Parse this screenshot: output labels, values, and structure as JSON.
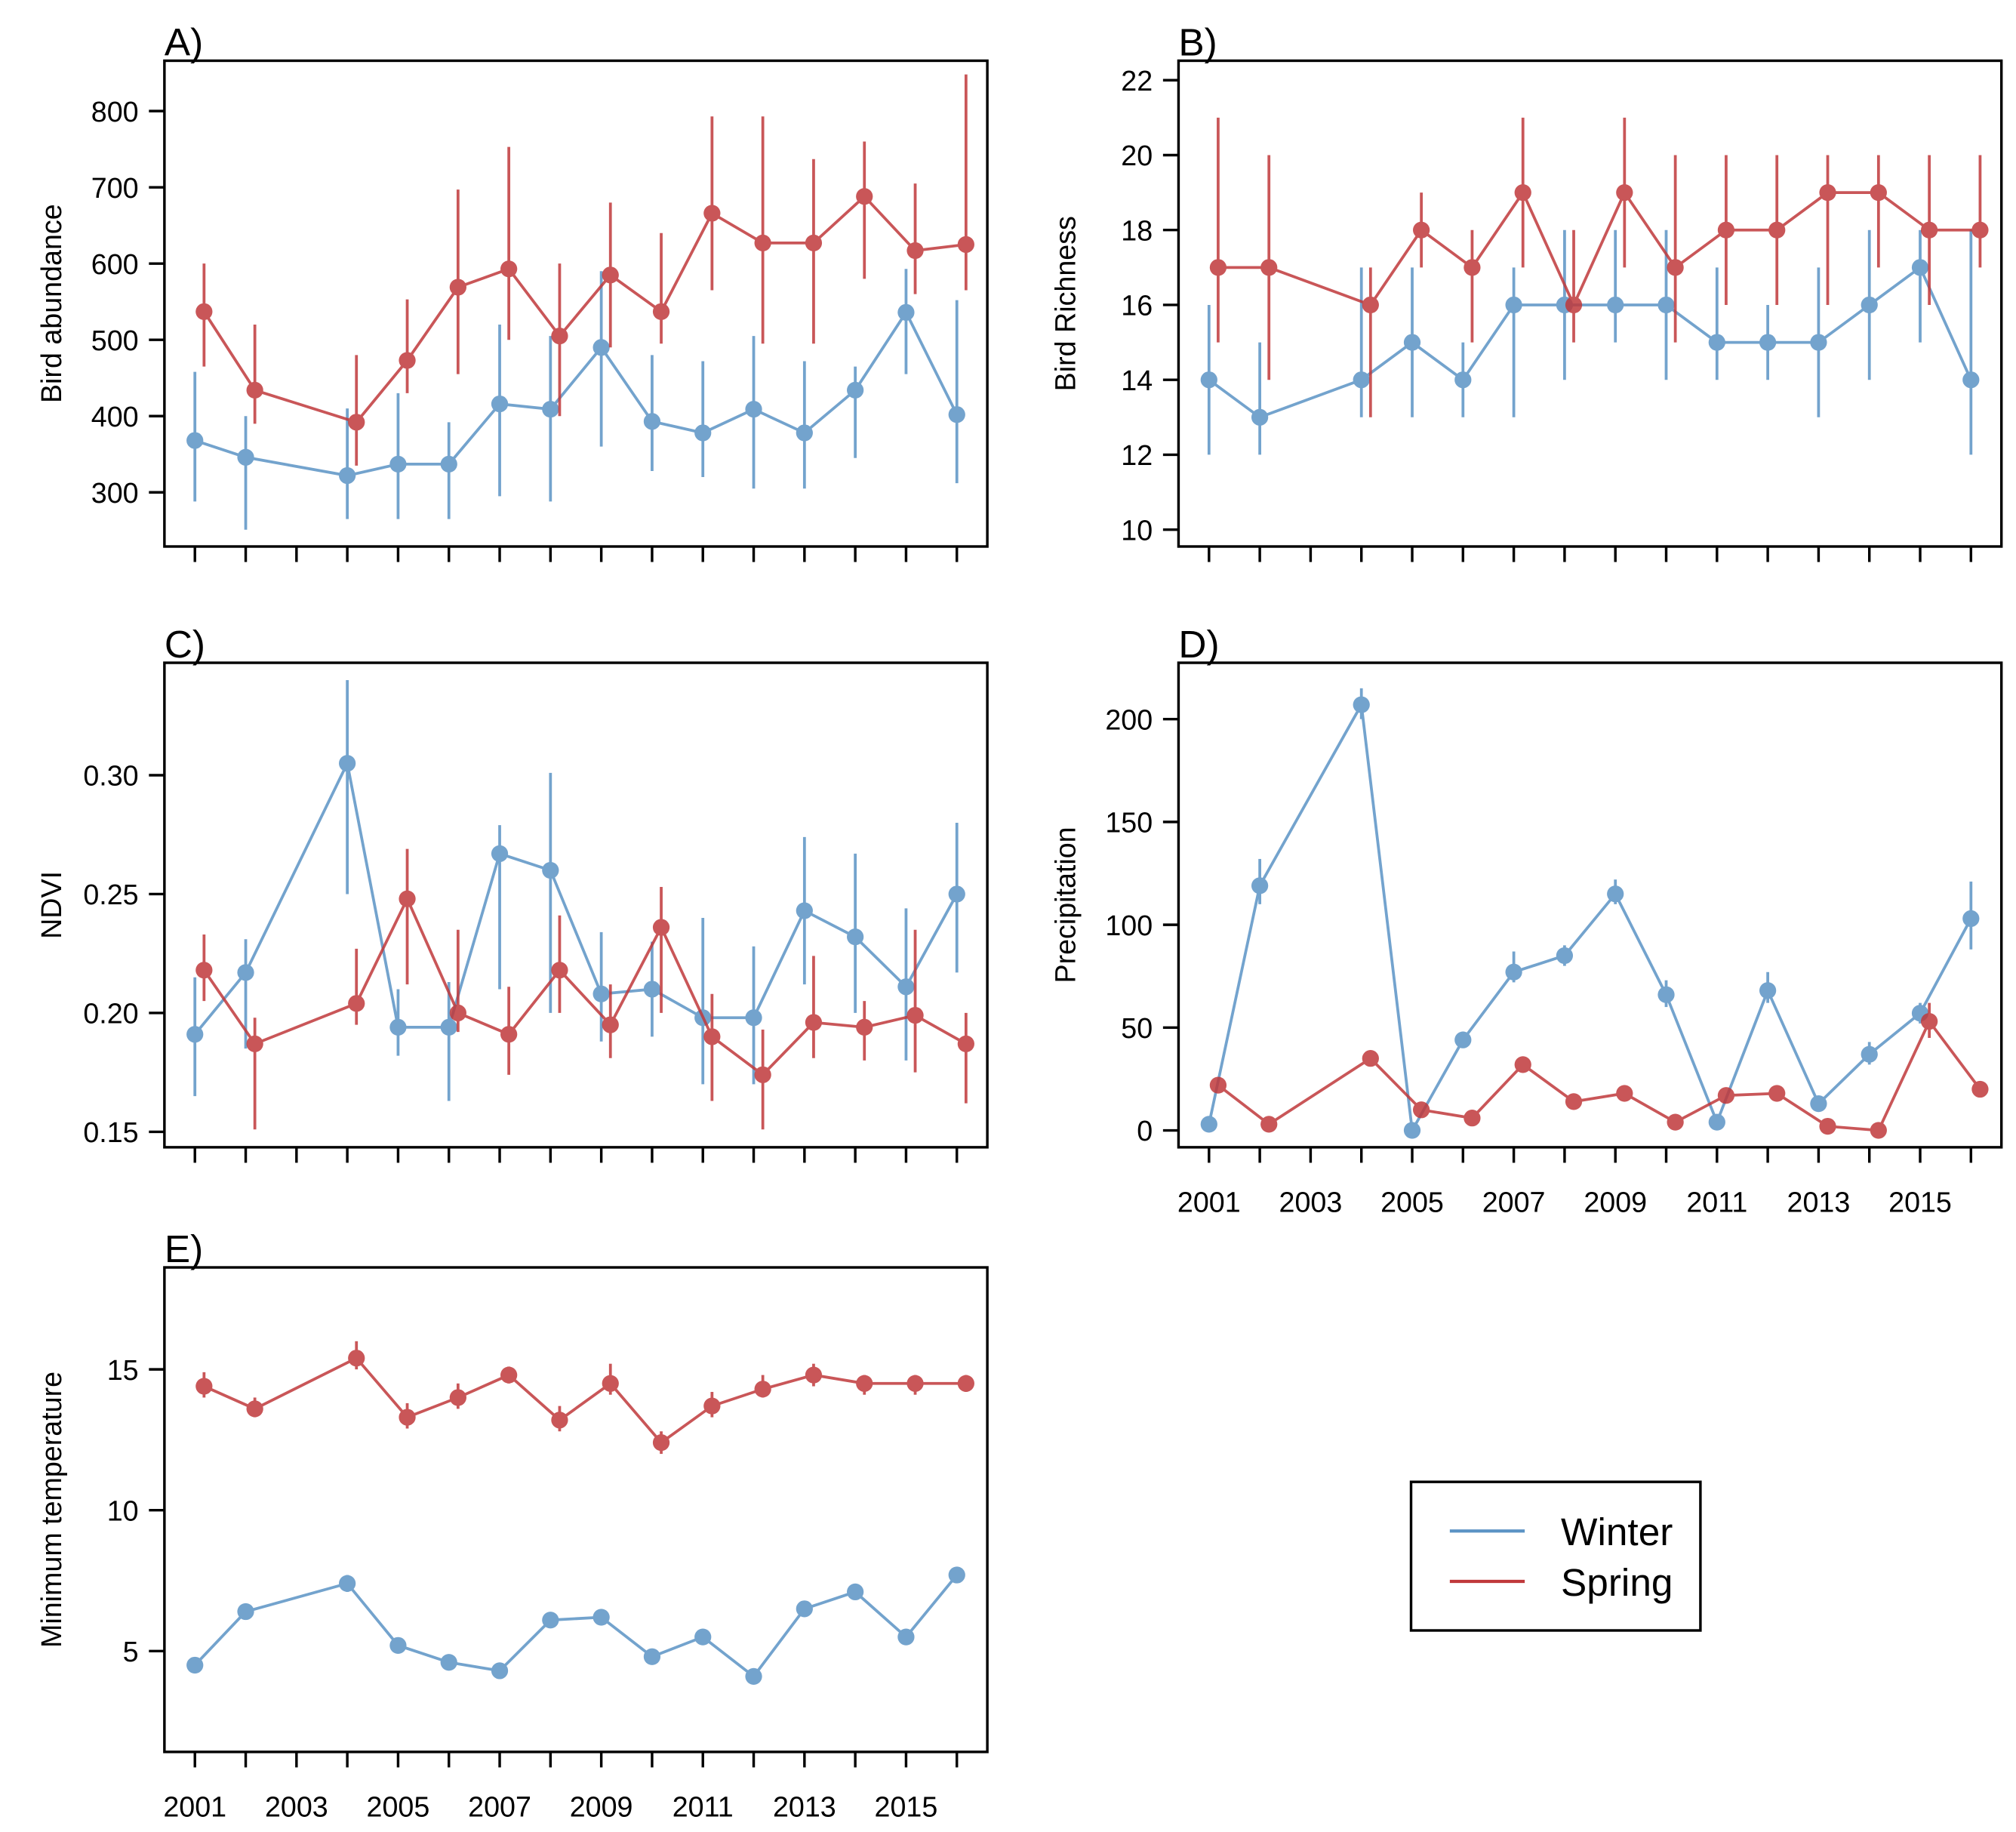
{
  "colors": {
    "winter": "#5b93c5",
    "spring": "#c0393b"
  },
  "legend": {
    "position": "bottom-right",
    "entries": [
      {
        "name": "Winter",
        "series": "winter"
      },
      {
        "name": "Spring",
        "series": "spring"
      }
    ]
  },
  "chart_data": [
    {
      "id": "A",
      "panel_label": "A)",
      "type": "line",
      "ylabel": "Bird abundance",
      "xlabel": "",
      "ylim": [
        229,
        866
      ],
      "yticks": [
        300,
        400,
        500,
        600,
        700,
        800
      ],
      "xlim": [
        2000.4,
        2016.6
      ],
      "xticks": [
        2001,
        2002,
        2003,
        2004,
        2005,
        2006,
        2007,
        2008,
        2009,
        2010,
        2011,
        2012,
        2013,
        2014,
        2015,
        2016
      ],
      "xtick_labels": [],
      "x": [
        2001,
        2002,
        2004,
        2005,
        2006,
        2007,
        2008,
        2009,
        2010,
        2011,
        2012,
        2013,
        2014,
        2015,
        2016
      ],
      "series": [
        {
          "name": "Winter",
          "key": "winter",
          "values": [
            368,
            346,
            322,
            337,
            337,
            416,
            409,
            490,
            393,
            378,
            409,
            378,
            434,
            536,
            402
          ],
          "lower": [
            288,
            251,
            265,
            265,
            265,
            295,
            288,
            360,
            328,
            320,
            305,
            305,
            345,
            455,
            312
          ],
          "upper": [
            458,
            400,
            410,
            430,
            392,
            520,
            505,
            590,
            480,
            472,
            505,
            472,
            465,
            593,
            552
          ]
        },
        {
          "name": "Spring",
          "key": "spring",
          "values": [
            537,
            434,
            392,
            473,
            569,
            593,
            505,
            585,
            537,
            666,
            627,
            627,
            688,
            617,
            625
          ],
          "lower": [
            465,
            390,
            335,
            430,
            455,
            500,
            400,
            490,
            495,
            565,
            495,
            495,
            580,
            560,
            565
          ],
          "upper": [
            600,
            520,
            480,
            553,
            697,
            753,
            600,
            680,
            640,
            793,
            793,
            737,
            760,
            705,
            848
          ]
        }
      ]
    },
    {
      "id": "B",
      "panel_label": "B)",
      "type": "line",
      "ylabel": "Bird Richness",
      "xlabel": "",
      "ylim": [
        9.55,
        22.52
      ],
      "yticks": [
        10,
        12,
        14,
        16,
        18,
        20,
        22
      ],
      "xlim": [
        2000.4,
        2016.6
      ],
      "xticks": [
        2001,
        2002,
        2003,
        2004,
        2005,
        2006,
        2007,
        2008,
        2009,
        2010,
        2011,
        2012,
        2013,
        2014,
        2015,
        2016
      ],
      "xtick_labels": [],
      "x": [
        2001,
        2002,
        2004,
        2005,
        2006,
        2007,
        2008,
        2009,
        2010,
        2011,
        2012,
        2013,
        2014,
        2015,
        2016
      ],
      "series": [
        {
          "name": "Winter",
          "key": "winter",
          "values": [
            14,
            13,
            14,
            15,
            14,
            16,
            16,
            16,
            16,
            15,
            15,
            15,
            16,
            17,
            14
          ],
          "lower": [
            12,
            12,
            13,
            13,
            13,
            13,
            14,
            15,
            14,
            14,
            14,
            13,
            14,
            15,
            12
          ],
          "upper": [
            16,
            15,
            17,
            17,
            15,
            17,
            18,
            18,
            18,
            17,
            16,
            17,
            18,
            18,
            18
          ]
        },
        {
          "name": "Spring",
          "key": "spring",
          "values": [
            17,
            17,
            16,
            18,
            17,
            19,
            16,
            19,
            17,
            18,
            18,
            19,
            19,
            18,
            18
          ],
          "lower": [
            15,
            14,
            13,
            17,
            15,
            17,
            15,
            17,
            15,
            16,
            16,
            16,
            17,
            16,
            17
          ],
          "upper": [
            21,
            20,
            17,
            19,
            18,
            21,
            18,
            21,
            20,
            20,
            20,
            20,
            20,
            20,
            20
          ]
        }
      ]
    },
    {
      "id": "C",
      "panel_label": "C)",
      "type": "line",
      "ylabel": "NDVI",
      "xlabel": "",
      "ylim": [
        0.1435,
        0.3473
      ],
      "yticks": [
        0.15,
        0.2,
        0.25,
        0.3
      ],
      "ytick_labels": [
        "0.15",
        "0.20",
        "0.25",
        "0.30"
      ],
      "xlim": [
        2000.4,
        2016.6
      ],
      "xticks": [
        2001,
        2002,
        2003,
        2004,
        2005,
        2006,
        2007,
        2008,
        2009,
        2010,
        2011,
        2012,
        2013,
        2014,
        2015,
        2016
      ],
      "xtick_labels": [],
      "x": [
        2001,
        2002,
        2004,
        2005,
        2006,
        2007,
        2008,
        2009,
        2010,
        2011,
        2012,
        2013,
        2014,
        2015,
        2016
      ],
      "series": [
        {
          "name": "Winter",
          "key": "winter",
          "values": [
            0.191,
            0.217,
            0.305,
            0.194,
            0.194,
            0.267,
            0.26,
            0.208,
            0.21,
            0.198,
            0.198,
            0.243,
            0.232,
            0.211,
            0.25
          ],
          "lower": [
            0.165,
            0.185,
            0.25,
            0.182,
            0.163,
            0.21,
            0.2,
            0.188,
            0.19,
            0.17,
            0.17,
            0.212,
            0.2,
            0.18,
            0.217
          ],
          "upper": [
            0.215,
            0.231,
            0.34,
            0.21,
            0.213,
            0.279,
            0.301,
            0.234,
            0.23,
            0.24,
            0.228,
            0.274,
            0.267,
            0.244,
            0.28
          ]
        },
        {
          "name": "Spring",
          "key": "spring",
          "values": [
            0.218,
            0.187,
            0.204,
            0.248,
            0.2,
            0.191,
            0.218,
            0.195,
            0.236,
            0.19,
            0.174,
            0.196,
            0.194,
            0.199,
            0.187
          ],
          "lower": [
            0.205,
            0.151,
            0.195,
            0.212,
            0.192,
            0.174,
            0.2,
            0.181,
            0.2,
            0.163,
            0.151,
            0.181,
            0.18,
            0.175,
            0.162
          ],
          "upper": [
            0.233,
            0.198,
            0.227,
            0.269,
            0.235,
            0.211,
            0.241,
            0.212,
            0.253,
            0.208,
            0.193,
            0.224,
            0.205,
            0.235,
            0.2
          ]
        }
      ]
    },
    {
      "id": "D",
      "panel_label": "D)",
      "type": "line",
      "ylabel": "Precipitation",
      "xlabel": "",
      "ylim": [
        -8.2,
        227.4
      ],
      "yticks": [
        0,
        50,
        100,
        150,
        200
      ],
      "xlim": [
        2000.4,
        2016.6
      ],
      "xticks": [
        2001,
        2002,
        2003,
        2004,
        2005,
        2006,
        2007,
        2008,
        2009,
        2010,
        2011,
        2012,
        2013,
        2014,
        2015,
        2016
      ],
      "xtick_labels": [
        "2001",
        "2003",
        "2005",
        "2007",
        "2009",
        "2011",
        "2013",
        "2015"
      ],
      "x": [
        2001,
        2002,
        2004,
        2005,
        2006,
        2007,
        2008,
        2009,
        2010,
        2011,
        2012,
        2013,
        2014,
        2015,
        2016
      ],
      "series": [
        {
          "name": "Winter",
          "key": "winter",
          "values": [
            3,
            119,
            207,
            0,
            44,
            77,
            85,
            115,
            66,
            4,
            68,
            13,
            37,
            57,
            103
          ],
          "lower": [
            1,
            110,
            200,
            0,
            40,
            72,
            80,
            110,
            60,
            2,
            62,
            10,
            32,
            52,
            88
          ],
          "upper": [
            5,
            132,
            215,
            2,
            48,
            87,
            90,
            122,
            73,
            6,
            77,
            16,
            43,
            62,
            121
          ]
        },
        {
          "name": "Spring",
          "key": "spring",
          "values": [
            22,
            3,
            35,
            10,
            6,
            32,
            14,
            18,
            4,
            17,
            18,
            2,
            0,
            53,
            20
          ],
          "lower": [
            19,
            1,
            32,
            7,
            4,
            29,
            11,
            15,
            2,
            14,
            15,
            1,
            0,
            45,
            17
          ],
          "upper": [
            25,
            5,
            38,
            13,
            8,
            35,
            17,
            21,
            6,
            20,
            21,
            4,
            2,
            62,
            23
          ]
        }
      ]
    },
    {
      "id": "E",
      "panel_label": "E)",
      "type": "line",
      "ylabel": "Minimum temperature",
      "xlabel": "",
      "ylim": [
        1.42,
        18.62
      ],
      "yticks": [
        5,
        10,
        15
      ],
      "xlim": [
        2000.4,
        2016.6
      ],
      "xticks": [
        2001,
        2002,
        2003,
        2004,
        2005,
        2006,
        2007,
        2008,
        2009,
        2010,
        2011,
        2012,
        2013,
        2014,
        2015,
        2016
      ],
      "xtick_labels": [
        "2001",
        "2003",
        "2005",
        "2007",
        "2009",
        "2011",
        "2013",
        "2015"
      ],
      "x": [
        2001,
        2002,
        2004,
        2005,
        2006,
        2007,
        2008,
        2009,
        2010,
        2011,
        2012,
        2013,
        2014,
        2015,
        2016
      ],
      "series": [
        {
          "name": "Winter",
          "key": "winter",
          "values": [
            4.5,
            6.4,
            7.4,
            5.2,
            4.6,
            4.3,
            6.1,
            6.2,
            4.8,
            5.5,
            4.1,
            6.5,
            7.1,
            5.5,
            7.7
          ],
          "lower": [
            4.3,
            6.2,
            7.1,
            5.0,
            4.4,
            4.1,
            5.9,
            6.0,
            4.6,
            5.3,
            3.9,
            6.3,
            6.9,
            5.3,
            7.5
          ],
          "upper": [
            4.7,
            6.6,
            7.7,
            5.4,
            4.8,
            4.5,
            6.3,
            6.4,
            5.0,
            5.7,
            4.3,
            6.7,
            7.3,
            5.7,
            7.9
          ]
        },
        {
          "name": "Spring",
          "key": "spring",
          "values": [
            14.4,
            13.6,
            15.4,
            13.3,
            14.0,
            14.8,
            13.2,
            14.5,
            12.4,
            13.7,
            14.3,
            14.8,
            14.5,
            14.5,
            14.5
          ],
          "lower": [
            14.0,
            13.3,
            15.0,
            12.9,
            13.6,
            14.5,
            12.8,
            14.1,
            12.0,
            13.3,
            14.0,
            14.4,
            14.1,
            14.1,
            14.2
          ],
          "upper": [
            14.9,
            14.0,
            16.0,
            13.8,
            14.5,
            15.1,
            13.7,
            15.2,
            12.8,
            14.2,
            14.8,
            15.2,
            14.8,
            14.8,
            14.8
          ]
        }
      ]
    }
  ]
}
